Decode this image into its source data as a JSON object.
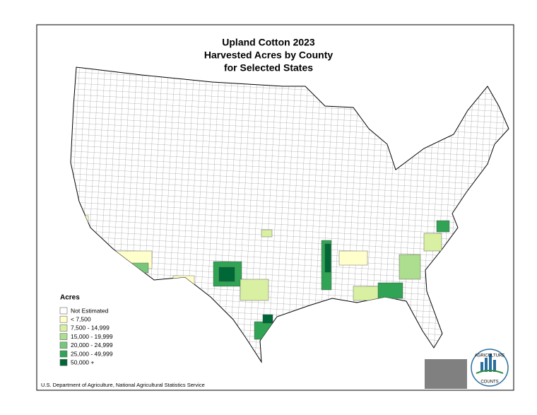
{
  "header": {
    "title_lines": [
      "Upland Cotton 2023",
      "Harvested Acres by County",
      "for Selected States"
    ]
  },
  "legend": {
    "title": "Acres",
    "items": [
      {
        "label": "Not Estimated",
        "color": "#ffffff"
      },
      {
        "label": "< 7,500",
        "color": "#ffffcc"
      },
      {
        "label": "7,500 - 14,999",
        "color": "#d9f0a3"
      },
      {
        "label": "15,000 - 19,999",
        "color": "#addd8e"
      },
      {
        "label": "20,000 - 24,999",
        "color": "#78c679"
      },
      {
        "label": "25,000 - 49,999",
        "color": "#31a354"
      },
      {
        "label": "50,000 +",
        "color": "#006837"
      }
    ]
  },
  "footer": "U.S. Department of Agriculture, National Agricultural Statistics Service",
  "logo": {
    "top": "AGRICULTURE",
    "bottom": "COUNTS"
  }
}
